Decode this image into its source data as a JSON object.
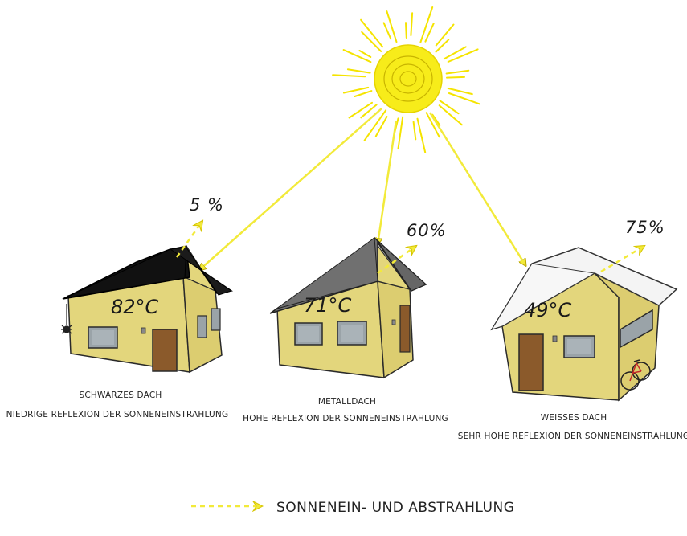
{
  "houses": [
    {
      "temperature": "82°C",
      "reflection": "5 %",
      "roof_type": "SCHWARZES DACH",
      "description": "NIEDRIGE REFLEXION DER SONNENEINSTRAHLUNG",
      "roof_color": "#111111"
    },
    {
      "temperature": "71°C",
      "reflection": "60%",
      "roof_type": "METALLDACH",
      "description": "HOHE REFLEXION DER SONNENEINSTRAHLUNG",
      "roof_color": "#6f6f6f"
    },
    {
      "temperature": "49°C",
      "reflection": "75%",
      "roof_type": "WEISSES DACH",
      "description": "SEHR HOHE REFLEXION DER SONNENEINSTRAHLUNG",
      "roof_color": "#f4f4f4"
    }
  ],
  "legend": {
    "label": "SONNENEIN- UND ABSTRAHLUNG"
  },
  "colors": {
    "sun": "#f5e400",
    "arrow": "#f2ea3a",
    "wall": "#e3d67c",
    "door": "#8b5a2b",
    "window": "#9aa3a8"
  },
  "icons": [
    "sun-icon",
    "spider-icon",
    "bicycle-icon"
  ]
}
